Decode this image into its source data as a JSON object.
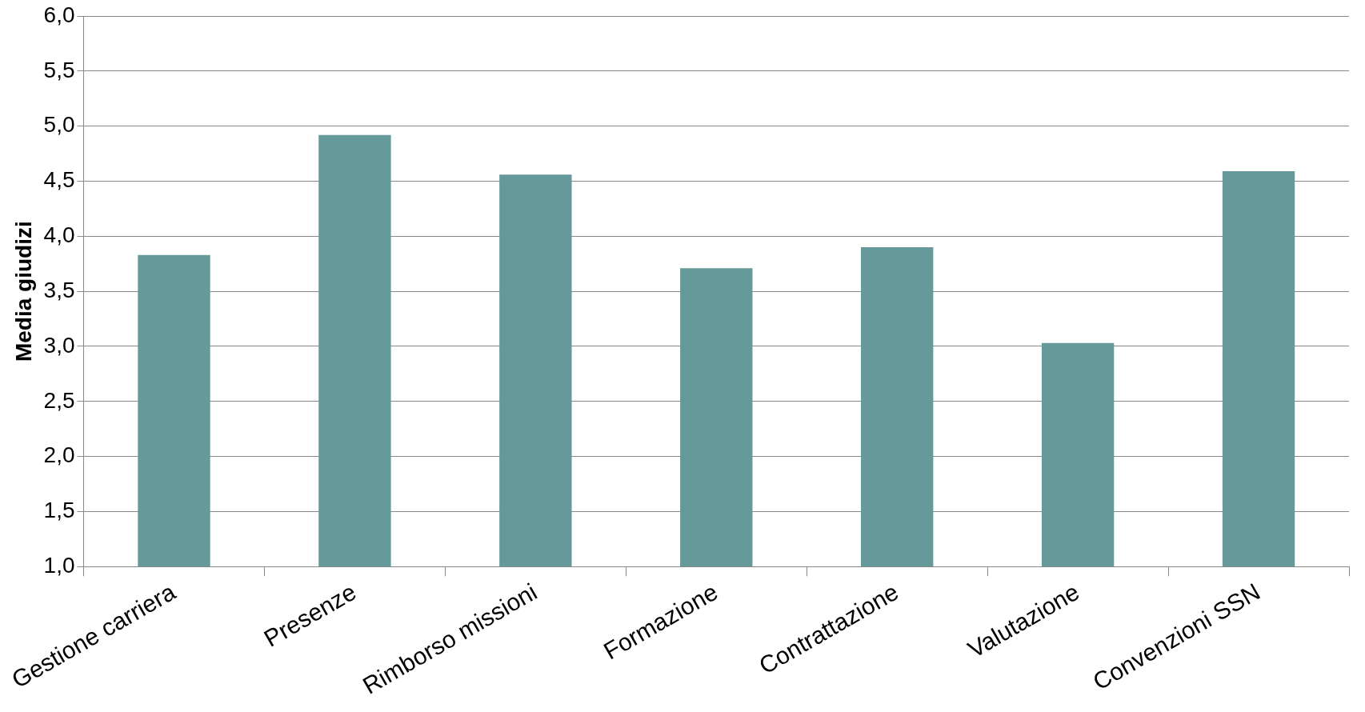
{
  "chart_data": {
    "type": "bar",
    "ylabel": "Media giudizi",
    "categories": [
      "Gestione carriera",
      "Presenze",
      "Rimborso missioni",
      "Formazione",
      "Contrattazione",
      "Valutazione",
      "Convenzioni SSN"
    ],
    "values": [
      3.83,
      4.92,
      4.56,
      3.71,
      3.9,
      3.03,
      4.59
    ],
    "color": "#669999",
    "ylim": [
      1,
      6
    ],
    "yticks": [
      {
        "value": 1,
        "label": "1,0"
      },
      {
        "value": 1.5,
        "label": "1,5"
      },
      {
        "value": 2,
        "label": "2,0"
      },
      {
        "value": 2.5,
        "label": "2,5"
      },
      {
        "value": 3,
        "label": "3,0"
      },
      {
        "value": 3.5,
        "label": "3,5"
      },
      {
        "value": 4,
        "label": "4,0"
      },
      {
        "value": 4.5,
        "label": "4,5"
      },
      {
        "value": 5,
        "label": "5,0"
      },
      {
        "value": 5.5,
        "label": "5,5"
      },
      {
        "value": 6,
        "label": "6,0"
      }
    ],
    "grid": "y",
    "legend": false
  }
}
